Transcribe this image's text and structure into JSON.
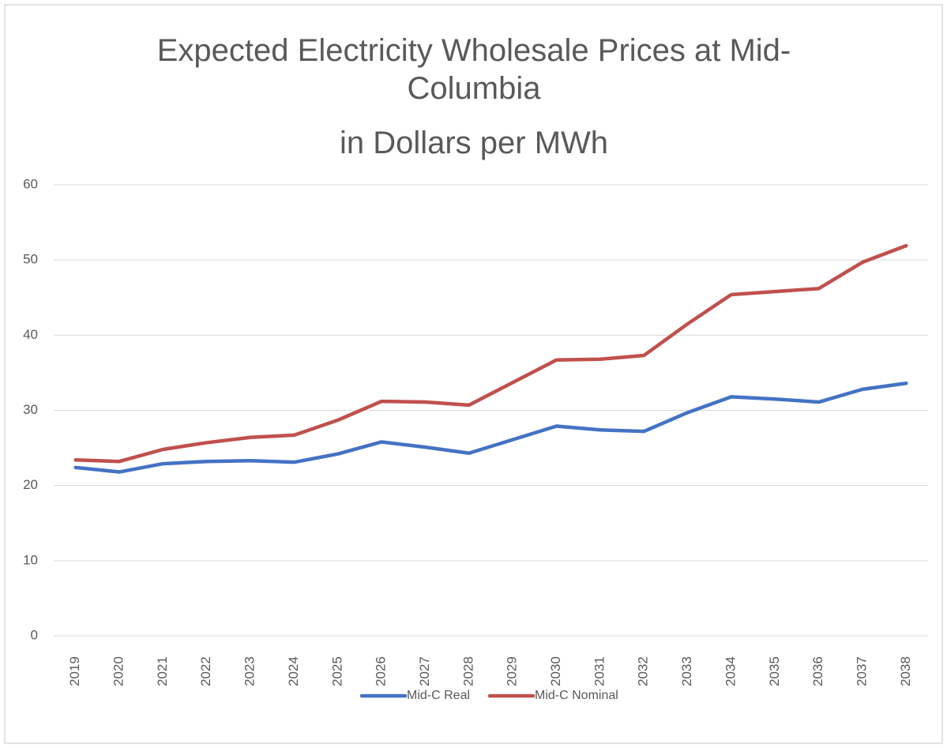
{
  "chart_data": {
    "type": "line",
    "title": "Expected Electricity Wholesale Prices at Mid-Columbia",
    "subtitle": "in Dollars per MWh",
    "categories": [
      "2019",
      "2020",
      "2021",
      "2022",
      "2023",
      "2024",
      "2025",
      "2026",
      "2027",
      "2028",
      "2029",
      "2030",
      "2031",
      "2032",
      "2033",
      "2034",
      "2035",
      "2036",
      "2037",
      "2038"
    ],
    "series": [
      {
        "name": "Mid-C Real",
        "color": "#4472c4",
        "values": [
          22.4,
          21.8,
          22.9,
          23.2,
          23.3,
          23.1,
          24.2,
          25.8,
          25.1,
          24.3,
          26.1,
          27.9,
          27.4,
          27.2,
          29.7,
          31.8,
          31.5,
          31.1,
          32.8,
          33.6
        ]
      },
      {
        "name": "Mid-C Nominal",
        "color": "#c0504d",
        "values": [
          23.4,
          23.2,
          24.8,
          25.7,
          26.4,
          26.7,
          28.7,
          31.2,
          31.1,
          30.7,
          33.7,
          36.7,
          36.8,
          37.3,
          41.5,
          45.4,
          45.8,
          46.2,
          49.7,
          51.9
        ]
      }
    ],
    "ylim": [
      0,
      60
    ],
    "yticks": [
      0,
      10,
      20,
      30,
      40,
      50,
      60
    ],
    "grid": true,
    "legend": "bottom"
  }
}
